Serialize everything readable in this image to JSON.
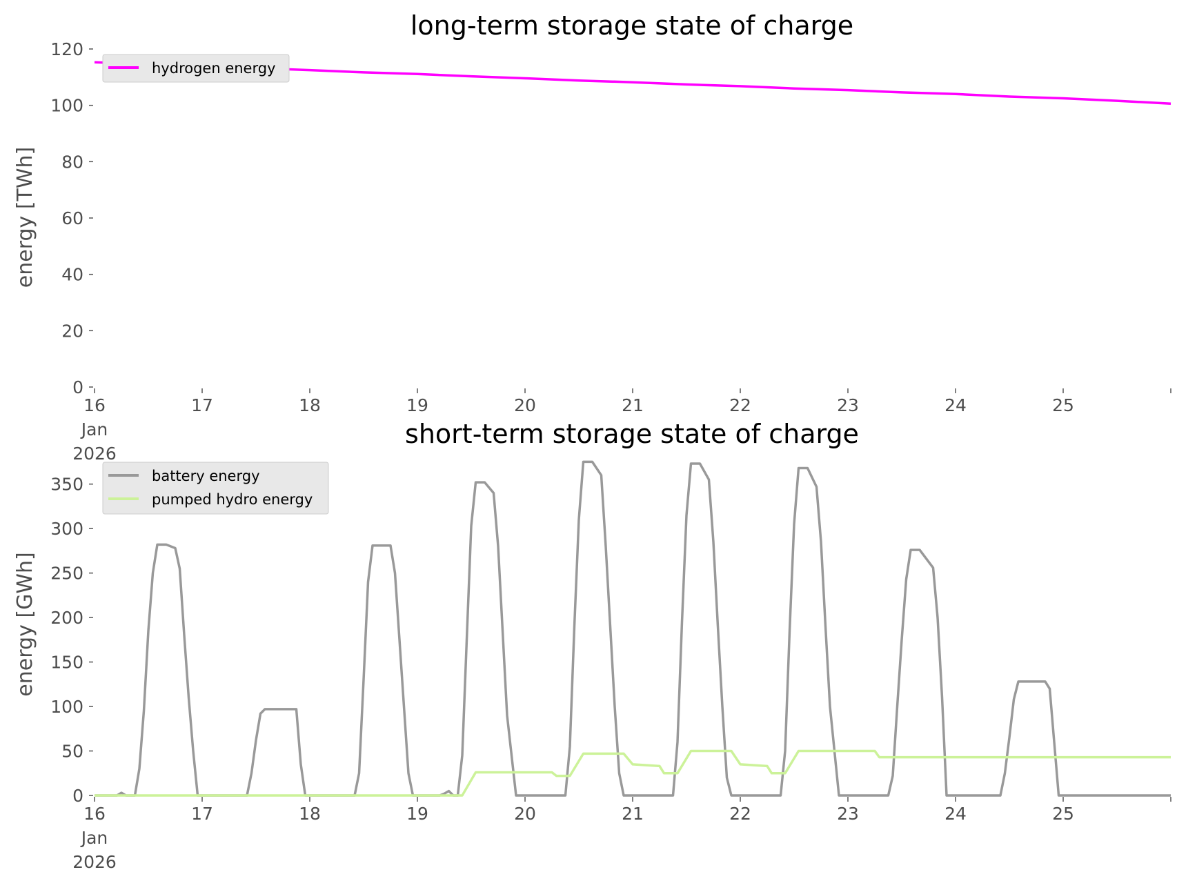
{
  "chart_data": [
    {
      "type": "line",
      "title": "long-term storage state of charge",
      "ylabel": "energy [TWh]",
      "xlabel": "",
      "xlim": [
        "2026-01-16 00:00",
        "2026-01-26 00:00"
      ],
      "ylim": [
        0,
        120
      ],
      "yticks": [
        0,
        20,
        40,
        60,
        80,
        100,
        120
      ],
      "xtick_labels": [
        "16\nJan\n2026",
        "17",
        "18",
        "19",
        "20",
        "21",
        "22",
        "23",
        "24",
        "25"
      ],
      "grid": false,
      "legend": "upper left",
      "series": [
        {
          "name": "hydrogen energy",
          "color": "#ff00ff",
          "points": [
            [
              "2026-01-16 00:00",
              115.3
            ],
            [
              "2026-01-16 12:00",
              114.6
            ],
            [
              "2026-01-17 00:00",
              113.9
            ],
            [
              "2026-01-17 12:00",
              113.2
            ],
            [
              "2026-01-18 00:00",
              112.5
            ],
            [
              "2026-01-18 12:00",
              111.7
            ],
            [
              "2026-01-19 00:00",
              111.1
            ],
            [
              "2026-01-19 12:00",
              110.3
            ],
            [
              "2026-01-20 00:00",
              109.6
            ],
            [
              "2026-01-20 12:00",
              108.8
            ],
            [
              "2026-01-21 00:00",
              108.2
            ],
            [
              "2026-01-21 12:00",
              107.4
            ],
            [
              "2026-01-22 00:00",
              106.8
            ],
            [
              "2026-01-22 12:00",
              106.0
            ],
            [
              "2026-01-23 00:00",
              105.4
            ],
            [
              "2026-01-23 12:00",
              104.6
            ],
            [
              "2026-01-24 00:00",
              104.0
            ],
            [
              "2026-01-24 12:00",
              103.1
            ],
            [
              "2026-01-25 00:00",
              102.5
            ],
            [
              "2026-01-25 12:00",
              101.6
            ],
            [
              "2026-01-26 00:00",
              100.6
            ]
          ]
        }
      ]
    },
    {
      "type": "line",
      "title": "short-term storage state of charge",
      "ylabel": "energy [GWh]",
      "xlabel": "",
      "xlim": [
        "2026-01-16 00:00",
        "2026-01-26 00:00"
      ],
      "ylim": [
        0,
        380
      ],
      "yticks": [
        0,
        50,
        100,
        150,
        200,
        250,
        300,
        350
      ],
      "xtick_labels": [
        "16\nJan\n2026",
        "17",
        "18",
        "19",
        "20",
        "21",
        "22",
        "23",
        "24",
        "25"
      ],
      "grid": false,
      "legend": "upper left",
      "series": [
        {
          "name": "battery energy",
          "color": "#999999",
          "points": [
            [
              "2026-01-16 00:00",
              0
            ],
            [
              "2026-01-16 05:00",
              0
            ],
            [
              "2026-01-16 06:00",
              3
            ],
            [
              "2026-01-16 07:00",
              0
            ],
            [
              "2026-01-16 09:00",
              0
            ],
            [
              "2026-01-16 10:00",
              30
            ],
            [
              "2026-01-16 11:00",
              95
            ],
            [
              "2026-01-16 12:00",
              185
            ],
            [
              "2026-01-16 13:00",
              250
            ],
            [
              "2026-01-16 14:00",
              282
            ],
            [
              "2026-01-16 16:00",
              282
            ],
            [
              "2026-01-16 18:00",
              278
            ],
            [
              "2026-01-16 19:00",
              255
            ],
            [
              "2026-01-16 20:00",
              180
            ],
            [
              "2026-01-16 21:00",
              110
            ],
            [
              "2026-01-16 22:00",
              50
            ],
            [
              "2026-01-16 23:00",
              0
            ],
            [
              "2026-01-17 10:00",
              0
            ],
            [
              "2026-01-17 11:00",
              25
            ],
            [
              "2026-01-17 12:00",
              62
            ],
            [
              "2026-01-17 13:00",
              92
            ],
            [
              "2026-01-17 14:00",
              97
            ],
            [
              "2026-01-17 21:00",
              97
            ],
            [
              "2026-01-17 22:00",
              35
            ],
            [
              "2026-01-17 23:00",
              0
            ],
            [
              "2026-01-18 10:00",
              0
            ],
            [
              "2026-01-18 11:00",
              25
            ],
            [
              "2026-01-18 12:00",
              130
            ],
            [
              "2026-01-18 13:00",
              240
            ],
            [
              "2026-01-18 14:00",
              281
            ],
            [
              "2026-01-18 18:00",
              281
            ],
            [
              "2026-01-18 19:00",
              250
            ],
            [
              "2026-01-18 20:00",
              175
            ],
            [
              "2026-01-18 21:00",
              100
            ],
            [
              "2026-01-18 22:00",
              25
            ],
            [
              "2026-01-18 23:00",
              0
            ],
            [
              "2026-01-19 05:00",
              0
            ],
            [
              "2026-01-19 06:00",
              2
            ],
            [
              "2026-01-19 07:00",
              5
            ],
            [
              "2026-01-19 08:00",
              0
            ],
            [
              "2026-01-19 09:00",
              0
            ],
            [
              "2026-01-19 10:00",
              45
            ],
            [
              "2026-01-19 11:00",
              175
            ],
            [
              "2026-01-19 12:00",
              303
            ],
            [
              "2026-01-19 13:00",
              352
            ],
            [
              "2026-01-19 15:00",
              352
            ],
            [
              "2026-01-19 17:00",
              340
            ],
            [
              "2026-01-19 18:00",
              280
            ],
            [
              "2026-01-19 19:00",
              185
            ],
            [
              "2026-01-19 20:00",
              90
            ],
            [
              "2026-01-19 22:00",
              0
            ],
            [
              "2026-01-20 09:00",
              0
            ],
            [
              "2026-01-20 10:00",
              55
            ],
            [
              "2026-01-20 11:00",
              190
            ],
            [
              "2026-01-20 12:00",
              310
            ],
            [
              "2026-01-20 13:00",
              375
            ],
            [
              "2026-01-20 15:00",
              375
            ],
            [
              "2026-01-20 17:00",
              360
            ],
            [
              "2026-01-20 18:00",
              280
            ],
            [
              "2026-01-20 19:00",
              190
            ],
            [
              "2026-01-20 20:00",
              100
            ],
            [
              "2026-01-20 21:00",
              25
            ],
            [
              "2026-01-20 22:00",
              0
            ],
            [
              "2026-01-21 09:00",
              0
            ],
            [
              "2026-01-21 10:00",
              60
            ],
            [
              "2026-01-21 11:00",
              195
            ],
            [
              "2026-01-21 12:00",
              315
            ],
            [
              "2026-01-21 13:00",
              373
            ],
            [
              "2026-01-21 15:00",
              373
            ],
            [
              "2026-01-21 17:00",
              355
            ],
            [
              "2026-01-21 18:00",
              285
            ],
            [
              "2026-01-21 19:00",
              190
            ],
            [
              "2026-01-21 20:00",
              100
            ],
            [
              "2026-01-21 21:00",
              20
            ],
            [
              "2026-01-21 22:00",
              0
            ],
            [
              "2026-01-22 09:00",
              0
            ],
            [
              "2026-01-22 10:00",
              50
            ],
            [
              "2026-01-22 11:00",
              185
            ],
            [
              "2026-01-22 12:00",
              305
            ],
            [
              "2026-01-22 13:00",
              368
            ],
            [
              "2026-01-22 15:00",
              368
            ],
            [
              "2026-01-22 17:00",
              347
            ],
            [
              "2026-01-22 18:00",
              285
            ],
            [
              "2026-01-22 19:00",
              190
            ],
            [
              "2026-01-22 20:00",
              100
            ],
            [
              "2026-01-22 22:00",
              0
            ],
            [
              "2026-01-23 09:00",
              0
            ],
            [
              "2026-01-23 10:00",
              22
            ],
            [
              "2026-01-23 11:00",
              100
            ],
            [
              "2026-01-23 12:00",
              175
            ],
            [
              "2026-01-23 13:00",
              243
            ],
            [
              "2026-01-23 14:00",
              276
            ],
            [
              "2026-01-23 16:00",
              276
            ],
            [
              "2026-01-23 19:00",
              256
            ],
            [
              "2026-01-23 20:00",
              200
            ],
            [
              "2026-01-23 21:00",
              110
            ],
            [
              "2026-01-23 22:00",
              0
            ],
            [
              "2026-01-24 10:00",
              0
            ],
            [
              "2026-01-24 11:00",
              25
            ],
            [
              "2026-01-24 12:00",
              65
            ],
            [
              "2026-01-24 13:00",
              108
            ],
            [
              "2026-01-24 14:00",
              128
            ],
            [
              "2026-01-24 20:00",
              128
            ],
            [
              "2026-01-24 21:00",
              120
            ],
            [
              "2026-01-24 22:00",
              60
            ],
            [
              "2026-01-24 23:00",
              0
            ],
            [
              "2026-01-26 00:00",
              0
            ]
          ]
        },
        {
          "name": "pumped hydro energy",
          "color": "#ccf299",
          "points": [
            [
              "2026-01-16 00:00",
              0
            ],
            [
              "2026-01-19 10:00",
              0
            ],
            [
              "2026-01-19 13:00",
              26
            ],
            [
              "2026-01-20 06:00",
              26
            ],
            [
              "2026-01-20 07:00",
              22
            ],
            [
              "2026-01-20 10:00",
              22
            ],
            [
              "2026-01-20 13:00",
              47
            ],
            [
              "2026-01-20 22:00",
              47
            ],
            [
              "2026-01-21 00:00",
              35
            ],
            [
              "2026-01-21 06:00",
              33
            ],
            [
              "2026-01-21 07:00",
              25
            ],
            [
              "2026-01-21 10:00",
              25
            ],
            [
              "2026-01-21 13:00",
              50
            ],
            [
              "2026-01-21 22:00",
              50
            ],
            [
              "2026-01-22 00:00",
              35
            ],
            [
              "2026-01-22 06:00",
              33
            ],
            [
              "2026-01-22 07:00",
              25
            ],
            [
              "2026-01-22 10:00",
              25
            ],
            [
              "2026-01-22 13:00",
              50
            ],
            [
              "2026-01-23 06:00",
              50
            ],
            [
              "2026-01-23 07:00",
              43
            ],
            [
              "2026-01-26 00:00",
              43
            ]
          ]
        }
      ]
    }
  ]
}
